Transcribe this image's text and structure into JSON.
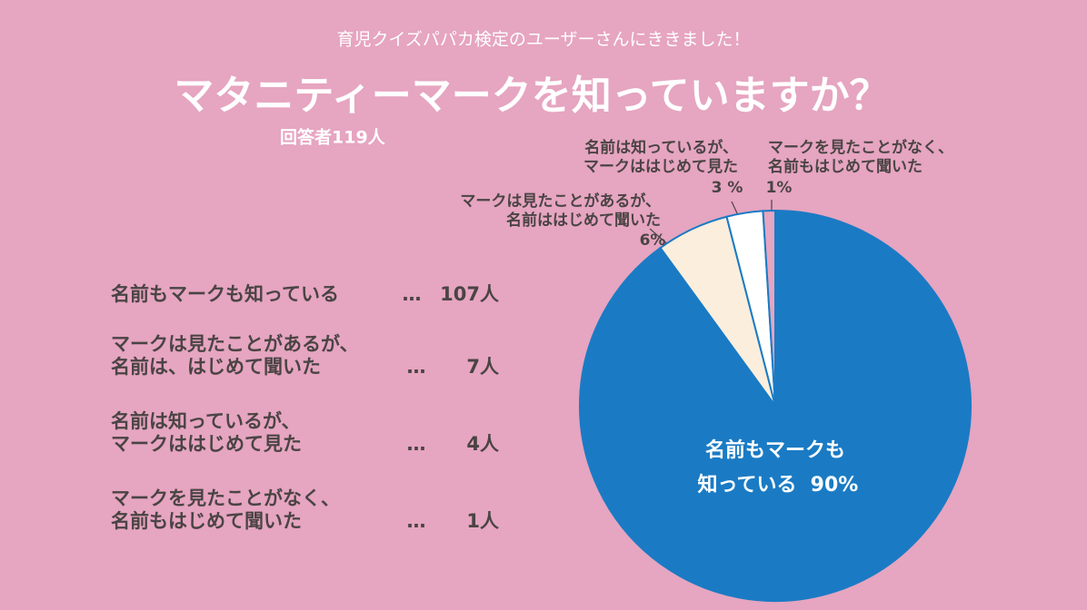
{
  "chart_data": {
    "type": "pie",
    "subtitle": "育児クイズパパカ検定のユーザーさんにききました！",
    "title": "マタニティーマークを知っていますか？",
    "respondents": "回答者119人",
    "categories": [
      [
        "名前もマークも",
        "知っている"
      ],
      [
        "マークは見たことがあるが、",
        "名前ははじめて聞いた"
      ],
      [
        "名前は知っているが、",
        "マークははじめて見た"
      ],
      [
        "マークを見たことがなく、",
        "名前もはじめて聞いた"
      ]
    ],
    "values": [
      90,
      6,
      3,
      1
    ],
    "value_labels": [
      "90%",
      "6%",
      "3 %",
      "1%"
    ],
    "colors": [
      "#1a7bc4",
      "#fbeedd",
      "#ffffff",
      "#e6a5c0"
    ],
    "answers": [
      [
        "名前もマークも知っている"
      ],
      [
        "マークは見たことがあるが、",
        "名前は、はじめて聞いた"
      ],
      [
        "名前は知っているが、",
        "マークははじめて見た"
      ],
      [
        "マークを見たことがなく、",
        "名前もはじめて聞いた"
      ]
    ],
    "leader": "…",
    "count_labels": [
      "107人",
      "7人",
      "4人",
      "1人"
    ]
  }
}
